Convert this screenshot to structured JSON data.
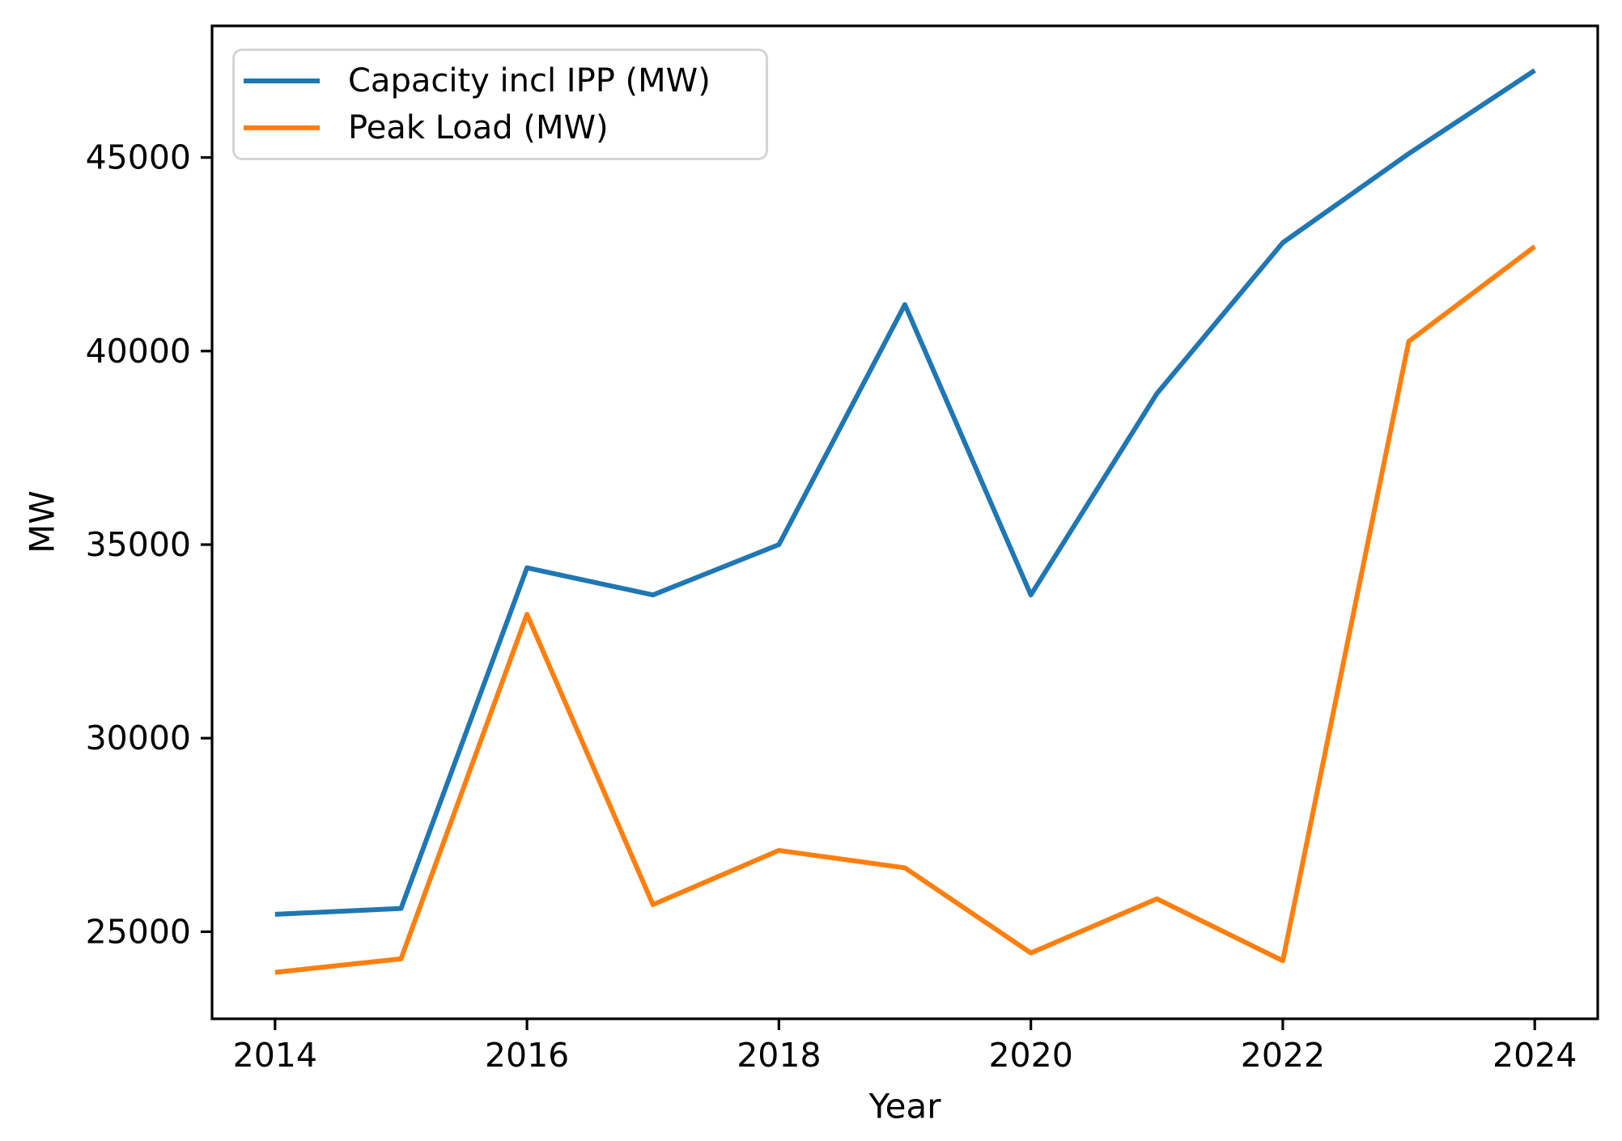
{
  "figure": {
    "xlabel": "Year",
    "ylabel": "MW",
    "legend": [
      {
        "label": "Capacity incl IPP (MW)",
        "color": "#1f77b4"
      },
      {
        "label": "Peak Load (MW)",
        "color": "#ff7f0e"
      }
    ]
  },
  "chart_data": {
    "type": "line",
    "title": "",
    "xlabel": "Year",
    "ylabel": "MW",
    "x": [
      2014,
      2015,
      2016,
      2017,
      2018,
      2019,
      2020,
      2021,
      2022,
      2023,
      2024
    ],
    "series": [
      {
        "name": "Capacity incl IPP (MW)",
        "color": "#1f77b4",
        "values": [
          25450,
          25600,
          34400,
          33700,
          35000,
          41200,
          33700,
          38900,
          42800,
          45100,
          47250
        ]
      },
      {
        "name": "Peak Load (MW)",
        "color": "#ff7f0e",
        "values": [
          23950,
          24300,
          33200,
          25700,
          27100,
          26650,
          24450,
          25850,
          24250,
          40250,
          42700
        ]
      }
    ],
    "xlim": [
      2013.5,
      2024.5
    ],
    "ylim": [
      22750,
      48400
    ],
    "xticks": [
      2014,
      2016,
      2018,
      2020,
      2022,
      2024
    ],
    "xtick_labels": [
      "2014",
      "2016",
      "2018",
      "2020",
      "2022",
      "2024"
    ],
    "yticks": [
      25000,
      30000,
      35000,
      40000,
      45000
    ],
    "ytick_labels": [
      "25000",
      "30000",
      "35000",
      "40000",
      "45000"
    ],
    "grid": false,
    "legend_position": "upper left",
    "axis_color": "#000000"
  }
}
